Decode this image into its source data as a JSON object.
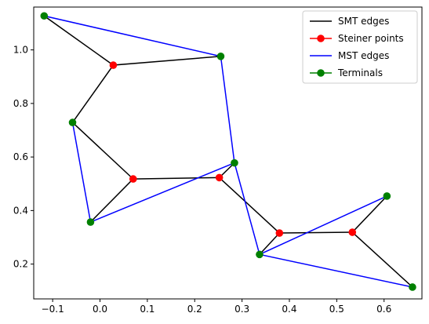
{
  "chart_data": {
    "type": "line",
    "title": "",
    "xlabel": "",
    "ylabel": "",
    "xlim": [
      -0.14,
      0.68
    ],
    "ylim": [
      0.07,
      1.16
    ],
    "xticks": [
      -0.1,
      0.0,
      0.1,
      0.2,
      0.3,
      0.4,
      0.5,
      0.6
    ],
    "xtick_labels": [
      "−0.1",
      "0.0",
      "0.1",
      "0.2",
      "0.3",
      "0.4",
      "0.5",
      "0.6"
    ],
    "yticks": [
      0.2,
      0.4,
      0.6,
      0.8,
      1.0
    ],
    "ytick_labels": [
      "0.2",
      "0.4",
      "0.6",
      "0.8",
      "1.0"
    ],
    "grid": false,
    "legend_position": "top-right",
    "legend": [
      {
        "label": "SMT edges",
        "color": "#000000",
        "marker": false
      },
      {
        "label": "Steiner points",
        "color": "#ff0000",
        "marker": true
      },
      {
        "label": "MST edges",
        "color": "#0000ff",
        "marker": false
      },
      {
        "label": "Terminals",
        "color": "#008000",
        "marker": true
      }
    ],
    "smt_edges": [
      [
        [
          -0.118,
          1.127
        ],
        [
          0.028,
          0.943
        ]
      ],
      [
        [
          0.028,
          0.943
        ],
        [
          0.255,
          0.976
        ]
      ],
      [
        [
          0.028,
          0.943
        ],
        [
          -0.058,
          0.729
        ]
      ],
      [
        [
          -0.058,
          0.729
        ],
        [
          0.07,
          0.518
        ]
      ],
      [
        [
          0.07,
          0.518
        ],
        [
          -0.02,
          0.357
        ]
      ],
      [
        [
          0.07,
          0.518
        ],
        [
          0.252,
          0.523
        ]
      ],
      [
        [
          0.252,
          0.523
        ],
        [
          0.284,
          0.578
        ]
      ],
      [
        [
          0.252,
          0.523
        ],
        [
          0.379,
          0.316
        ]
      ],
      [
        [
          0.379,
          0.316
        ],
        [
          0.337,
          0.236
        ]
      ],
      [
        [
          0.379,
          0.316
        ],
        [
          0.533,
          0.319
        ]
      ],
      [
        [
          0.533,
          0.319
        ],
        [
          0.606,
          0.454
        ]
      ],
      [
        [
          0.533,
          0.319
        ],
        [
          0.66,
          0.114
        ]
      ]
    ],
    "mst_edges": [
      [
        [
          -0.118,
          1.127
        ],
        [
          0.255,
          0.976
        ]
      ],
      [
        [
          0.255,
          0.976
        ],
        [
          0.284,
          0.578
        ]
      ],
      [
        [
          -0.058,
          0.729
        ],
        [
          -0.02,
          0.357
        ]
      ],
      [
        [
          -0.02,
          0.357
        ],
        [
          0.284,
          0.578
        ]
      ],
      [
        [
          0.284,
          0.578
        ],
        [
          0.337,
          0.236
        ]
      ],
      [
        [
          0.337,
          0.236
        ],
        [
          0.606,
          0.454
        ]
      ],
      [
        [
          0.337,
          0.236
        ],
        [
          0.66,
          0.114
        ]
      ]
    ],
    "steiner_points": [
      {
        "x": 0.028,
        "y": 0.943
      },
      {
        "x": 0.07,
        "y": 0.518
      },
      {
        "x": 0.252,
        "y": 0.523
      },
      {
        "x": 0.379,
        "y": 0.316
      },
      {
        "x": 0.533,
        "y": 0.319
      }
    ],
    "terminals": [
      {
        "x": -0.118,
        "y": 1.127
      },
      {
        "x": 0.255,
        "y": 0.976
      },
      {
        "x": -0.058,
        "y": 0.729
      },
      {
        "x": 0.284,
        "y": 0.578
      },
      {
        "x": -0.02,
        "y": 0.357
      },
      {
        "x": 0.606,
        "y": 0.454
      },
      {
        "x": 0.337,
        "y": 0.236
      },
      {
        "x": 0.66,
        "y": 0.114
      }
    ]
  }
}
